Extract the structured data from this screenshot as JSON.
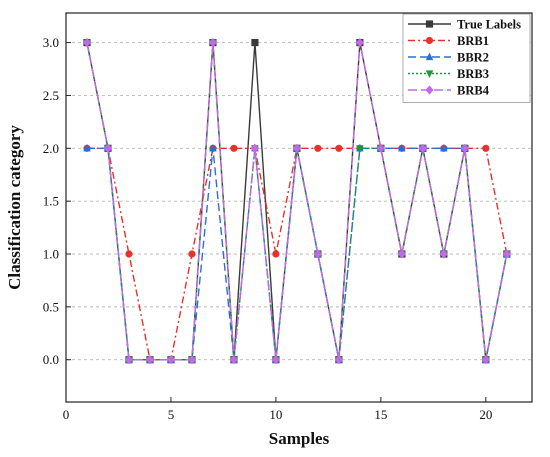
{
  "chart_data": {
    "type": "line",
    "xlabel": "Samples",
    "ylabel": "Classification category",
    "xlim": [
      0,
      22.2
    ],
    "ylim": [
      -0.4,
      3.28
    ],
    "xticks": [
      0,
      5,
      10,
      15,
      20
    ],
    "yticks": [
      0.0,
      0.5,
      1.0,
      1.5,
      2.0,
      2.5,
      3.0
    ],
    "ytick_labels": [
      "0.0",
      "0.5",
      "1.0",
      "1.5",
      "2.0",
      "2.5",
      "3.0"
    ],
    "grid": "horizontal dashed",
    "legend_position": "top-right",
    "x": [
      1,
      2,
      3,
      4,
      5,
      6,
      7,
      8,
      9,
      10,
      11,
      12,
      13,
      14,
      15,
      16,
      17,
      18,
      19,
      20,
      21
    ],
    "series": [
      {
        "name": "True Labels",
        "color": "#3a3a3a",
        "dash": "",
        "marker": "square",
        "values": [
          3,
          2,
          0,
          0,
          0,
          0,
          3,
          0,
          3,
          0,
          2,
          1,
          0,
          3,
          2,
          1,
          2,
          1,
          2,
          0,
          1
        ]
      },
      {
        "name": "BRB1",
        "color": "#e8312a",
        "dash": "7,3,2,3",
        "marker": "circle",
        "values": [
          2,
          2,
          1,
          0,
          0,
          1,
          2,
          2,
          2,
          1,
          2,
          2,
          2,
          2,
          2,
          2,
          2,
          2,
          2,
          2,
          1
        ]
      },
      {
        "name": "BBR2",
        "color": "#2a6fd6",
        "dash": "8,4",
        "marker": "triangle-up",
        "values": [
          2,
          2,
          0,
          0,
          0,
          0,
          2,
          0,
          2,
          0,
          2,
          1,
          0,
          2,
          2,
          2,
          2,
          2,
          2,
          0,
          1
        ]
      },
      {
        "name": "BRB3",
        "color": "#1a9a3a",
        "dash": "2,2",
        "marker": "triangle-down",
        "values": [
          3,
          2,
          0,
          0,
          0,
          0,
          3,
          0,
          2,
          0,
          2,
          1,
          0,
          2,
          2,
          1,
          2,
          1,
          2,
          0,
          1
        ]
      },
      {
        "name": "BRB4",
        "color": "#c368e6",
        "dash": "9,4",
        "marker": "diamond",
        "values": [
          3,
          2,
          0,
          0,
          0,
          0,
          3,
          0,
          2,
          0,
          2,
          1,
          0,
          3,
          2,
          1,
          2,
          1,
          2,
          0,
          1
        ]
      }
    ]
  }
}
